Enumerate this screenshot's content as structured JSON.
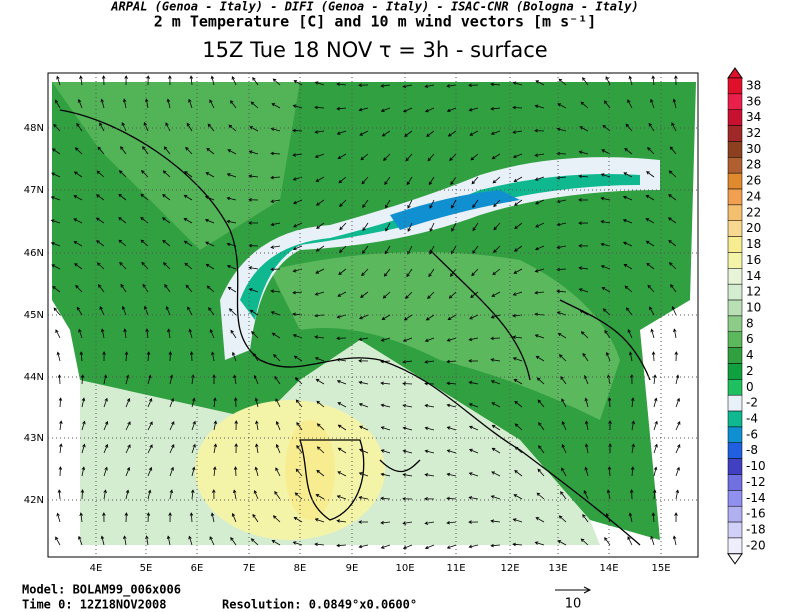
{
  "header": {
    "institutes": "ARPAL (Genoa - Italy)  -  DIFI (Genoa - Italy)  -  ISAC-CNR (Bologna - Italy)",
    "field": "2 m Temperature [C] and 10 m wind vectors [m s⁻¹]",
    "title": "15Z Tue 18 NOV  τ = 3h  -  surface"
  },
  "map": {
    "lon_labels": [
      "4E",
      "5E",
      "6E",
      "7E",
      "8E",
      "9E",
      "10E",
      "11E",
      "12E",
      "13E",
      "14E",
      "15E"
    ],
    "lat_labels": [
      "48N",
      "47N",
      "46N",
      "45N",
      "44N",
      "43N",
      "42N"
    ]
  },
  "colorbar": {
    "levels": [
      38,
      36,
      34,
      32,
      30,
      28,
      26,
      24,
      22,
      20,
      18,
      16,
      14,
      12,
      10,
      8,
      6,
      4,
      2,
      0,
      -2,
      -4,
      -6,
      -8,
      -10,
      -12,
      -14,
      -16,
      -18,
      -20
    ],
    "colors": [
      "#e0102a",
      "#e8204a",
      "#c81030",
      "#a02828",
      "#8c4020",
      "#b06030",
      "#e08a30",
      "#f0a050",
      "#f4c070",
      "#f8d890",
      "#f8ec90",
      "#f4f4a8",
      "#e8f4d8",
      "#d4ecd0",
      "#b8e0b4",
      "#8ccc88",
      "#5cb85c",
      "#30a040",
      "#10a040",
      "#20c060",
      "#e8f0f8",
      "#10b890",
      "#1090d0",
      "#2060e0",
      "#4040c0",
      "#7070e0",
      "#9090f0",
      "#b0b0f0",
      "#d0d0f8",
      "#eeeefc"
    ]
  },
  "footer": {
    "model": "Model: BOLAM99_006x006",
    "time": "Time 0: 12Z18NOV2008",
    "resolution": "Resolution: 0.0849°x0.0600°",
    "arrow_scale": "10"
  }
}
